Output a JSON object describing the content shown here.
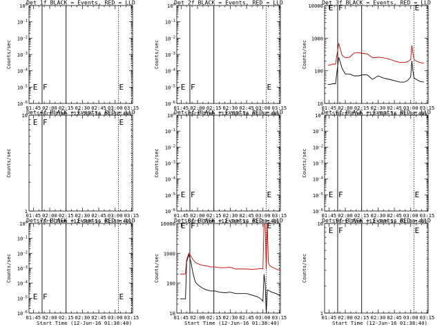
{
  "chart_data": [
    {
      "type": "line",
      "title": "Det 1f BLACK = Events, RED = LLD",
      "ylabel": "Counts/sec",
      "xlabel": "Start Time (12-Jun-16 01:38:40)",
      "x_ticks": [
        "01:45",
        "02:00",
        "02:15",
        "02:30",
        "02:45",
        "03:00",
        "03:15"
      ],
      "y_tick_labels": [
        "10^0",
        "10^-1",
        "10^-2",
        "10^-3",
        "10^-4",
        "10^-5",
        "10^-6"
      ],
      "markers": [
        {
          "label": "E",
          "time": "01:44"
        },
        {
          "label": "F",
          "time": "01:53"
        },
        {
          "label": "E",
          "time": "03:03"
        }
      ],
      "series": []
    },
    {
      "type": "line",
      "title": "Det 2f BLACK = Events, RED = LLD",
      "ylabel": "Counts/sec",
      "xlabel": "Start Time (12-Jun-16 01:38:40)",
      "x_ticks": [
        "01:45",
        "02:00",
        "02:15",
        "02:30",
        "02:45",
        "03:00",
        "03:15"
      ],
      "y_tick_labels": [
        "10^0",
        "10^-1",
        "10^-2",
        "10^-3",
        "10^-4",
        "10^-5",
        "10^-6"
      ],
      "markers": [
        {
          "label": "E",
          "time": "01:44"
        },
        {
          "label": "F",
          "time": "01:53"
        },
        {
          "label": "E",
          "time": "03:03"
        }
      ],
      "series": []
    },
    {
      "type": "line",
      "title": "Det 3f BLACK = Events, RED = LLD",
      "ylabel": "Counts/sec",
      "xlabel": "Start Time (12-Jun-16 01:38:40)",
      "x_ticks": [
        "01:45",
        "02:00",
        "02:15",
        "02:30",
        "02:45",
        "03:00",
        "03:15"
      ],
      "y_tick_labels": [
        "10",
        "100",
        "1000",
        "10000"
      ],
      "markers": [
        {
          "label": "E",
          "time": "01:44"
        },
        {
          "label": "F",
          "time": "01:53"
        },
        {
          "label": "E",
          "time": "03:03"
        }
      ],
      "series": [
        {
          "color": "#000000",
          "x_min": [
            104,
            105,
            106,
            108,
            111,
            114,
            117,
            120,
            124,
            128,
            132,
            136,
            140,
            145,
            150,
            155,
            160,
            165,
            170,
            174,
            177,
            180,
            181,
            182,
            183,
            185,
            188,
            192
          ],
          "y": [
            38,
            38,
            38,
            40,
            40,
            260,
            120,
            80,
            80,
            70,
            70,
            75,
            75,
            55,
            70,
            60,
            55,
            50,
            45,
            45,
            50,
            65,
            200,
            100,
            60,
            55,
            48,
            45
          ]
        },
        {
          "color": "#cc0000",
          "x_min": [
            104,
            105,
            106,
            108,
            111,
            114,
            117,
            120,
            124,
            128,
            132,
            136,
            140,
            145,
            150,
            155,
            160,
            165,
            170,
            174,
            177,
            180,
            181,
            182,
            183,
            185,
            188,
            192
          ],
          "y": [
            150,
            150,
            150,
            160,
            160,
            700,
            300,
            250,
            260,
            350,
            360,
            340,
            330,
            250,
            260,
            250,
            230,
            200,
            180,
            180,
            190,
            220,
            600,
            350,
            220,
            200,
            180,
            170
          ]
        }
      ]
    },
    {
      "type": "line",
      "title": "Det 4f BLACK = Events, RED = LLD",
      "ylabel": "Counts/sec",
      "xlabel": "Start Time (12-Jun-16 01:38:40)",
      "x_ticks": [
        "01:45",
        "02:00",
        "02:15",
        "02:30",
        "02:45",
        "03:00",
        "03:15"
      ],
      "y_tick_labels": [
        "1",
        "10"
      ],
      "markers": [
        {
          "label": "E",
          "time": "01:44"
        },
        {
          "label": "F",
          "time": "01:53"
        },
        {
          "label": "E",
          "time": "03:03"
        }
      ],
      "series": []
    },
    {
      "type": "line",
      "title": "Det 5f BLACK = Events, RED = LLD",
      "ylabel": "Counts/sec",
      "xlabel": "Start Time (12-Jun-16 01:38:40)",
      "x_ticks": [
        "01:45",
        "02:00",
        "02:15",
        "02:30",
        "02:45",
        "03:00",
        "03:15"
      ],
      "y_tick_labels": [
        "10^0",
        "10^-1",
        "10^-2",
        "10^-3",
        "10^-4",
        "10^-5",
        "10^-6"
      ],
      "markers": [
        {
          "label": "E",
          "time": "01:44"
        },
        {
          "label": "F",
          "time": "01:53"
        },
        {
          "label": "E",
          "time": "03:03"
        }
      ],
      "series": []
    },
    {
      "type": "line",
      "title": "Det 6f BLACK = Events, RED = LLD",
      "ylabel": "Counts/sec",
      "xlabel": "Start Time (12-Jun-16 01:38:40)",
      "x_ticks": [
        "01:45",
        "02:00",
        "02:15",
        "02:30",
        "02:45",
        "03:00",
        "03:15"
      ],
      "y_tick_labels": [
        "10^0",
        "10^-1",
        "10^-2",
        "10^-3",
        "10^-4",
        "10^-5",
        "10^-6"
      ],
      "markers": [
        {
          "label": "E",
          "time": "01:44"
        },
        {
          "label": "F",
          "time": "01:53"
        },
        {
          "label": "E",
          "time": "03:03"
        }
      ],
      "series": []
    },
    {
      "type": "line",
      "title": "Det 7f BLACK = Events, RED = LLD",
      "ylabel": "Counts/sec",
      "xlabel": "Start Time (12-Jun-16 01:38:40)",
      "x_ticks": [
        "01:45",
        "02:00",
        "02:15",
        "02:30",
        "02:45",
        "03:00",
        "03:15"
      ],
      "y_tick_labels": [
        "10^0",
        "10^-1",
        "10^-2",
        "10^-3",
        "10^-4",
        "10^-5",
        "10^-6"
      ],
      "markers": [
        {
          "label": "E",
          "time": "01:44"
        },
        {
          "label": "F",
          "time": "01:53"
        },
        {
          "label": "E",
          "time": "03:03"
        }
      ],
      "series": []
    },
    {
      "type": "line",
      "title": "Det 8f BLACK = Events, RED = LLD",
      "ylabel": "Counts/sec",
      "xlabel": "Start Time (12-Jun-16 01:38:40)",
      "x_ticks": [
        "01:45",
        "02:00",
        "02:15",
        "02:30",
        "02:45",
        "03:00",
        "03:15"
      ],
      "y_tick_labels": [
        "10",
        "100",
        "1000",
        "10000"
      ],
      "markers": [
        {
          "label": "E",
          "time": "01:44"
        },
        {
          "label": "F",
          "time": "01:53"
        },
        {
          "label": "E",
          "time": "03:03"
        }
      ],
      "series": [
        {
          "color": "#000000",
          "x_min": [
            104,
            106,
            107,
            108,
            109,
            110,
            112,
            114,
            116,
            118,
            120,
            124,
            128,
            132,
            136,
            140,
            145,
            150,
            155,
            160,
            165,
            170,
            175,
            178,
            180,
            181,
            182,
            183,
            184,
            186,
            188,
            192,
            196,
            200
          ],
          "y": [
            30,
            30,
            30,
            30,
            30,
            500,
            900,
            500,
            200,
            110,
            90,
            70,
            60,
            55,
            55,
            50,
            48,
            50,
            45,
            45,
            45,
            40,
            35,
            30,
            25,
            200,
            100,
            8,
            60,
            55,
            50,
            45,
            38,
            35
          ]
        },
        {
          "color": "#cc0000",
          "x_min": [
            104,
            106,
            107,
            108,
            109,
            110,
            112,
            114,
            116,
            118,
            120,
            124,
            128,
            132,
            136,
            140,
            145,
            150,
            155,
            160,
            165,
            170,
            175,
            178,
            180,
            181,
            182,
            183,
            184,
            185,
            186,
            188,
            192,
            196,
            200
          ],
          "y": [
            200,
            200,
            200,
            200,
            210,
            600,
            1000,
            800,
            600,
            500,
            450,
            400,
            380,
            350,
            350,
            330,
            330,
            340,
            300,
            300,
            300,
            290,
            300,
            310,
            300,
            10000,
            10000,
            300,
            10000,
            500,
            400,
            350,
            300,
            260,
            250
          ]
        }
      ]
    },
    {
      "type": "line",
      "title": "Det 9f BLACK = Events, RED = LLD",
      "ylabel": "Counts/sec",
      "xlabel": "Start Time (12-Jun-16 01:38:40)",
      "x_ticks": [
        "01:45",
        "02:00",
        "02:15",
        "02:30",
        "02:45",
        "03:00",
        "03:15"
      ],
      "y_tick_labels": [
        "1",
        "10"
      ],
      "markers": [
        {
          "label": "E",
          "time": "01:44"
        },
        {
          "label": "F",
          "time": "01:53"
        },
        {
          "label": "E",
          "time": "03:03"
        }
      ],
      "series": []
    }
  ]
}
